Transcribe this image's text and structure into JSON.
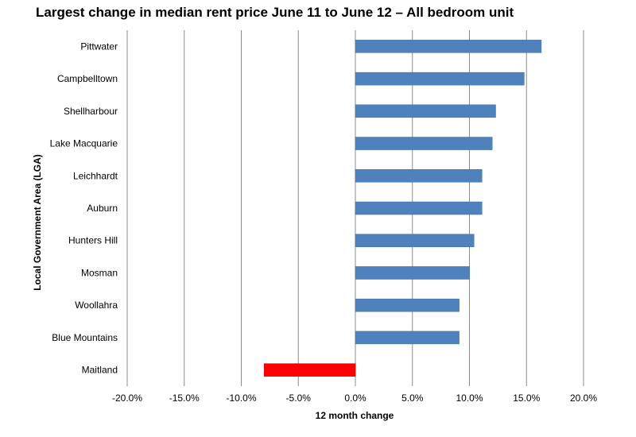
{
  "chart_data": {
    "type": "bar",
    "orientation": "horizontal",
    "title": "Largest change in median rent price June 11 to June 12 – All bedroom unit",
    "xlabel": "12 month change",
    "ylabel": "Local Government Area (LGA)",
    "xlim": [
      -20,
      20
    ],
    "x_ticks": [
      -20,
      -15,
      -10,
      -5,
      0,
      5,
      10,
      15,
      20
    ],
    "x_tick_labels": [
      "-20.0%",
      "-15.0%",
      "-10.0%",
      "-5.0%",
      "0.0%",
      "5.0%",
      "10.0%",
      "15.0%",
      "20.0%"
    ],
    "grid": "vertical gridlines",
    "categories": [
      "Pittwater",
      "Campbelltown",
      "Shellharbour",
      "Lake Macquarie",
      "Leichhardt",
      "Auburn",
      "Hunters Hill",
      "Mosman",
      "Woollahra",
      "Blue Mountains",
      "Maitland"
    ],
    "values": [
      16.3,
      14.8,
      12.3,
      12.0,
      11.1,
      11.1,
      10.4,
      10.0,
      9.1,
      9.1,
      -8.0
    ],
    "colors": {
      "positive": "#4F81BD",
      "negative": "#FF0000"
    }
  }
}
